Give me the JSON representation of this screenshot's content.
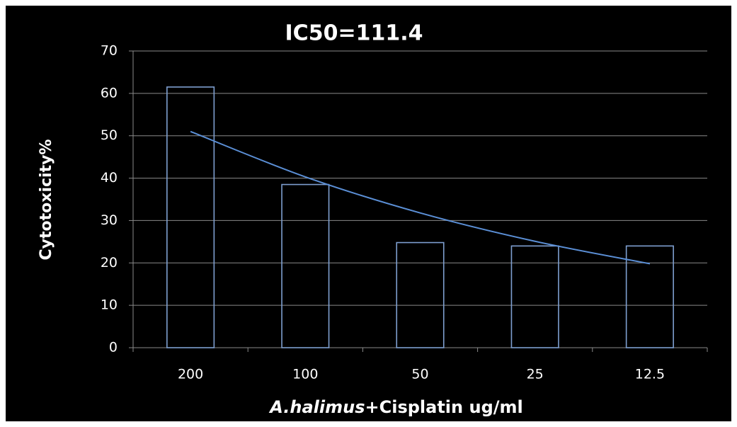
{
  "chart_data": {
    "type": "bar",
    "title": "IC50=111.4",
    "y_label": "Cytotoxicity%",
    "x_label_parts": [
      "A.halimus",
      "+Cisplatin ug/ml"
    ],
    "categories": [
      "200",
      "100",
      "50",
      "25",
      "12.5"
    ],
    "values": [
      61.5,
      38.5,
      24.8,
      24,
      24
    ],
    "color": "#7e9fd0",
    "trendline": {
      "color": "#5b8fd6",
      "values": [
        51,
        40.3,
        31.8,
        25.1,
        19.8
      ]
    },
    "ylim": [
      0,
      70
    ],
    "yticks": [
      0,
      10,
      20,
      30,
      40,
      50,
      60,
      70
    ],
    "grid": true
  }
}
